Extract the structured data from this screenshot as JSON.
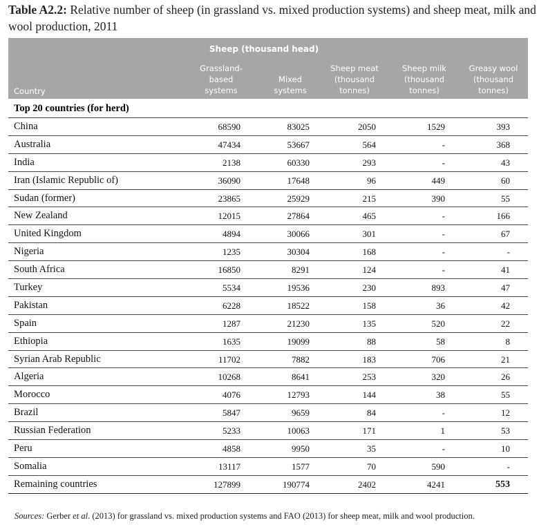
{
  "caption": {
    "label": "Table A2.2:",
    "text": "Relative number of sheep (in grassland vs. mixed production systems) and sheep meat, milk and wool production, 2011"
  },
  "headers": {
    "span": "Sheep (thousand head)",
    "country": "Country",
    "grassland": [
      "Grassland-",
      "based",
      "systems"
    ],
    "mixed": [
      "Mixed",
      "systems"
    ],
    "meat": [
      "Sheep meat",
      "(thousand",
      "tonnes)"
    ],
    "milk": [
      "Sheep milk",
      "(thousand",
      "tonnes)"
    ],
    "wool": [
      "Greasy wool",
      "(thousand",
      "tonnes)"
    ]
  },
  "section": "Top 20 countries (for herd)",
  "rows": [
    {
      "country": "China",
      "grassland": "68590",
      "mixed": "83025",
      "meat": "2050",
      "milk": "1529",
      "wool": "393"
    },
    {
      "country": "Australia",
      "grassland": "47434",
      "mixed": "53667",
      "meat": "564",
      "milk": "-",
      "wool": "368"
    },
    {
      "country": "India",
      "grassland": "2138",
      "mixed": "60330",
      "meat": "293",
      "milk": "-",
      "wool": "43"
    },
    {
      "country": "Iran (Islamic Republic of)",
      "grassland": "36090",
      "mixed": "17648",
      "meat": "96",
      "milk": "449",
      "wool": "60"
    },
    {
      "country": "Sudan (former)",
      "grassland": "23865",
      "mixed": "25929",
      "meat": "215",
      "milk": "390",
      "wool": "55"
    },
    {
      "country": "New Zealand",
      "grassland": "12015",
      "mixed": "27864",
      "meat": "465",
      "milk": "-",
      "wool": "166"
    },
    {
      "country": "United Kingdom",
      "grassland": "4894",
      "mixed": "30066",
      "meat": "301",
      "milk": "-",
      "wool": "67"
    },
    {
      "country": "Nigeria",
      "grassland": "1235",
      "mixed": "30304",
      "meat": "168",
      "milk": "-",
      "wool": "-"
    },
    {
      "country": "South Africa",
      "grassland": "16850",
      "mixed": "8291",
      "meat": "124",
      "milk": "-",
      "wool": "41"
    },
    {
      "country": "Turkey",
      "grassland": "5534",
      "mixed": "19536",
      "meat": "230",
      "milk": "893",
      "wool": "47"
    },
    {
      "country": "Pakistan",
      "grassland": "6228",
      "mixed": "18522",
      "meat": "158",
      "milk": "36",
      "wool": "42"
    },
    {
      "country": "Spain",
      "grassland": "1287",
      "mixed": "21230",
      "meat": "135",
      "milk": "520",
      "wool": "22"
    },
    {
      "country": "Ethiopia",
      "grassland": "1635",
      "mixed": "19099",
      "meat": "88",
      "milk": "58",
      "wool": "8"
    },
    {
      "country": "Syrian Arab Republic",
      "grassland": "11702",
      "mixed": "7882",
      "meat": "183",
      "milk": "706",
      "wool": "21"
    },
    {
      "country": "Algeria",
      "grassland": "10268",
      "mixed": "8641",
      "meat": "253",
      "milk": "320",
      "wool": "26"
    },
    {
      "country": "Morocco",
      "grassland": "4076",
      "mixed": "12793",
      "meat": "144",
      "milk": "38",
      "wool": "55"
    },
    {
      "country": "Brazil",
      "grassland": "5847",
      "mixed": "9659",
      "meat": "84",
      "milk": "-",
      "wool": "12"
    },
    {
      "country": "Russian Federation",
      "grassland": "5233",
      "mixed": "10063",
      "meat": "171",
      "milk": "1",
      "wool": "53"
    },
    {
      "country": "Peru",
      "grassland": "4858",
      "mixed": "9950",
      "meat": "35",
      "milk": "-",
      "wool": "10"
    },
    {
      "country": "Somalia",
      "grassland": "13117",
      "mixed": "1577",
      "meat": "70",
      "milk": "590",
      "wool": "-"
    },
    {
      "country": "Remaining countries",
      "grassland": "127899",
      "mixed": "190774",
      "meat": "2402",
      "milk": "4241",
      "wool": "553"
    }
  ],
  "sources": {
    "label": "Sources:",
    "p1": "Gerber",
    "etal": "et al",
    "p2": ". (2013) for grassland vs. mixed production systems and FAO (2013) for sheep meat, milk and wool production."
  }
}
